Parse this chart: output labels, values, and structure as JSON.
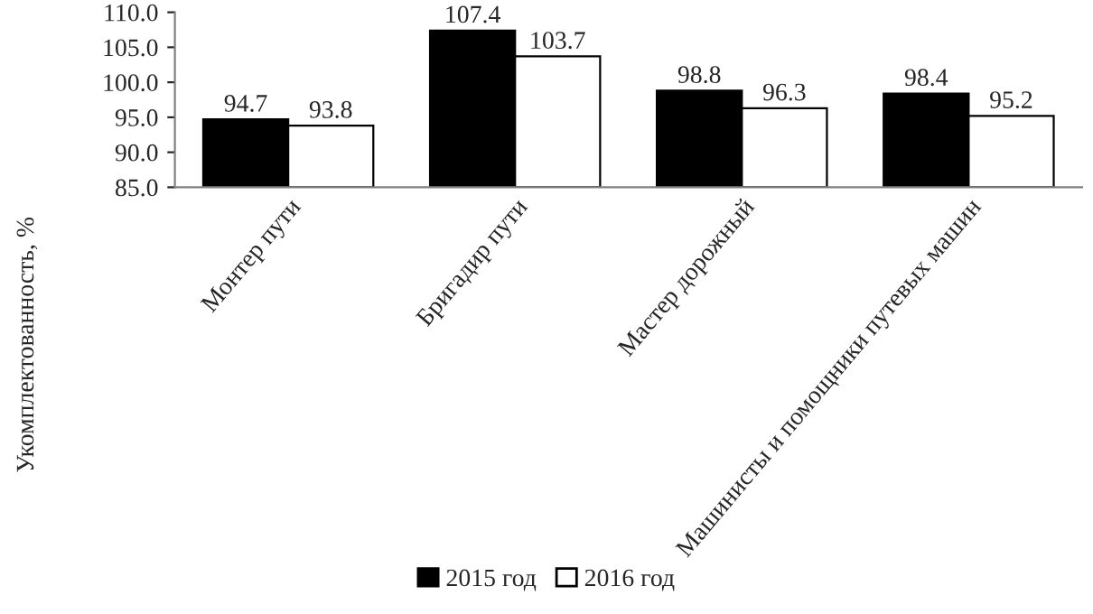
{
  "chart_data": {
    "type": "bar",
    "ylabel": "Укомплектованность, %",
    "categories": [
      "Монтер пути",
      "Бригадир пути",
      "Мастер дорожный",
      "Машинисты и помощники путевых машин"
    ],
    "series": [
      {
        "name": "2015 год",
        "color": "#000000",
        "values": [
          94.7,
          107.4,
          98.8,
          98.4
        ]
      },
      {
        "name": "2016 год",
        "color": "#ffffff",
        "values": [
          93.8,
          103.7,
          96.3,
          95.2
        ]
      }
    ],
    "ylim": [
      85,
      110
    ],
    "yticks": [
      {
        "value": 85,
        "label": "85.0"
      },
      {
        "value": 90,
        "label": "90.0"
      },
      {
        "value": 95,
        "label": "95.0"
      },
      {
        "value": 100,
        "label": "100.0"
      },
      {
        "value": 105,
        "label": "105.0"
      },
      {
        "value": 110,
        "label": "110.0"
      }
    ],
    "data_labels": true,
    "grid": false,
    "legend": "bottom"
  }
}
